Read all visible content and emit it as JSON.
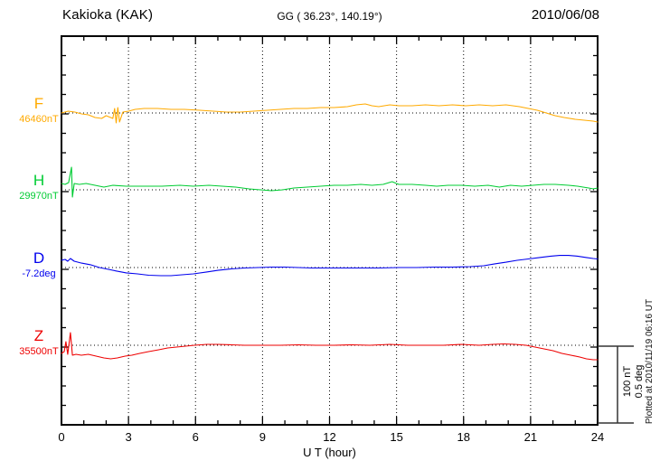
{
  "header": {
    "station": "Kakioka (KAK)",
    "coords": "GG ( 36.23°, 140.19°)",
    "date": "2010/06/08"
  },
  "xaxis": {
    "label": "U T (hour)",
    "ticks": [
      "0",
      "3",
      "6",
      "9",
      "12",
      "15",
      "18",
      "21",
      "24"
    ],
    "min": 0,
    "max": 24
  },
  "scalebar": {
    "line1": "100 nT",
    "line2": "0.5 deg"
  },
  "watermark": "Plotted at 2010/11/19 06:16 UT",
  "chart_data": {
    "type": "line",
    "title": "Kakioka (KAK) magnetogram 2010/06/08",
    "xlabel": "U T (hour)",
    "xlim": [
      0,
      24
    ],
    "x_major_tick_hours": 3,
    "x_minor_tick_hours": 1,
    "grid": "dotted vertical every 3 h, dotted horizontal baseline per channel",
    "legend_position": "left of each trace",
    "scale_bar": {
      "span_nT": 100,
      "span_deg": 0.5
    },
    "series": [
      {
        "name": "F",
        "baseline_label": "46460nT",
        "baseline_value": 46460,
        "unit": "nT",
        "color": "#ffaa00",
        "points": [
          [
            0,
            0
          ],
          [
            0.3,
            2.4
          ],
          [
            0.6,
            1.2
          ],
          [
            0.9,
            -1.2
          ],
          [
            1.2,
            -2.4
          ],
          [
            1.5,
            -5.9
          ],
          [
            1.8,
            -7.1
          ],
          [
            2.0,
            -3.5
          ],
          [
            2.3,
            -7.1
          ],
          [
            2.38,
            5.9
          ],
          [
            2.45,
            -12.9
          ],
          [
            2.52,
            7.1
          ],
          [
            2.6,
            -11.8
          ],
          [
            2.75,
            1.2
          ],
          [
            3.0,
            2.4
          ],
          [
            3.3,
            4.7
          ],
          [
            3.7,
            5.9
          ],
          [
            4.3,
            5.9
          ],
          [
            4.9,
            4.7
          ],
          [
            5.5,
            4.7
          ],
          [
            6.2,
            3.5
          ],
          [
            6.8,
            2.4
          ],
          [
            7.4,
            1.2
          ],
          [
            8.0,
            1.2
          ],
          [
            8.6,
            2.4
          ],
          [
            9.2,
            3.5
          ],
          [
            9.8,
            4.7
          ],
          [
            10.4,
            5.9
          ],
          [
            11.0,
            5.9
          ],
          [
            11.6,
            7.1
          ],
          [
            12.2,
            7.1
          ],
          [
            12.8,
            8.2
          ],
          [
            13.2,
            10.6
          ],
          [
            13.6,
            11.8
          ],
          [
            13.9,
            9.4
          ],
          [
            14.2,
            8.2
          ],
          [
            14.7,
            10.6
          ],
          [
            15.1,
            9.4
          ],
          [
            15.7,
            9.4
          ],
          [
            16.3,
            10.6
          ],
          [
            16.9,
            9.4
          ],
          [
            17.5,
            10.6
          ],
          [
            18.1,
            9.4
          ],
          [
            18.7,
            10.6
          ],
          [
            19.3,
            9.4
          ],
          [
            19.9,
            10.6
          ],
          [
            20.5,
            8.2
          ],
          [
            20.9,
            5.9
          ],
          [
            21.3,
            3.5
          ],
          [
            21.7,
            0
          ],
          [
            22.1,
            -3.5
          ],
          [
            22.5,
            -5.9
          ],
          [
            23.0,
            -8.2
          ],
          [
            23.4,
            -9.4
          ],
          [
            23.8,
            -10.6
          ],
          [
            24,
            -11.8
          ]
        ]
      },
      {
        "name": "H",
        "baseline_label": "29970nT",
        "baseline_value": 29970,
        "unit": "nT",
        "color": "#00cc33",
        "points": [
          [
            0,
            8.2
          ],
          [
            0.16,
            7.1
          ],
          [
            0.32,
            9.4
          ],
          [
            0.45,
            29.4
          ],
          [
            0.49,
            -9.4
          ],
          [
            0.57,
            8.2
          ],
          [
            0.8,
            7.1
          ],
          [
            1.1,
            8.2
          ],
          [
            1.5,
            5.9
          ],
          [
            1.9,
            3.5
          ],
          [
            2.3,
            5.9
          ],
          [
            2.9,
            4.7
          ],
          [
            3.7,
            4.7
          ],
          [
            4.5,
            4.7
          ],
          [
            5.3,
            5.9
          ],
          [
            5.9,
            4.7
          ],
          [
            6.6,
            5.9
          ],
          [
            7.2,
            4.7
          ],
          [
            7.8,
            3.5
          ],
          [
            8.4,
            1.2
          ],
          [
            8.9,
            0
          ],
          [
            9.4,
            -1.2
          ],
          [
            9.9,
            0
          ],
          [
            10.4,
            2.4
          ],
          [
            11.0,
            3.5
          ],
          [
            11.6,
            4.7
          ],
          [
            12.2,
            5.9
          ],
          [
            12.8,
            5.9
          ],
          [
            13.4,
            7.1
          ],
          [
            13.9,
            5.9
          ],
          [
            14.4,
            7.1
          ],
          [
            14.8,
            10.6
          ],
          [
            15.1,
            7.1
          ],
          [
            15.7,
            7.1
          ],
          [
            16.3,
            5.9
          ],
          [
            16.8,
            4.7
          ],
          [
            17.3,
            5.9
          ],
          [
            17.9,
            5.9
          ],
          [
            18.5,
            4.7
          ],
          [
            19.1,
            5.9
          ],
          [
            19.6,
            3.5
          ],
          [
            20.1,
            5.9
          ],
          [
            20.6,
            4.7
          ],
          [
            21.1,
            5.9
          ],
          [
            21.6,
            7.1
          ],
          [
            22.1,
            7.1
          ],
          [
            22.7,
            5.9
          ],
          [
            23.1,
            4.7
          ],
          [
            23.6,
            2.4
          ],
          [
            23.8,
            1.2
          ],
          [
            24,
            2.4
          ]
        ]
      },
      {
        "name": "D",
        "baseline_label": "-7.2deg",
        "baseline_value": -7.2,
        "unit": "deg",
        "color": "#0000ee",
        "points": [
          [
            0,
            0.047
          ],
          [
            0.16,
            0.053
          ],
          [
            0.28,
            0.041
          ],
          [
            0.4,
            0.059
          ],
          [
            0.57,
            0.041
          ],
          [
            0.9,
            0.029
          ],
          [
            1.3,
            0.018
          ],
          [
            1.7,
            0
          ],
          [
            2.1,
            -0.012
          ],
          [
            2.5,
            -0.024
          ],
          [
            2.9,
            -0.035
          ],
          [
            3.4,
            -0.041
          ],
          [
            3.9,
            -0.05
          ],
          [
            4.45,
            -0.053
          ],
          [
            4.9,
            -0.053
          ],
          [
            5.4,
            -0.047
          ],
          [
            5.9,
            -0.041
          ],
          [
            6.5,
            -0.029
          ],
          [
            7.0,
            -0.018
          ],
          [
            7.6,
            -0.009
          ],
          [
            8.2,
            -0.003
          ],
          [
            8.8,
            0
          ],
          [
            9.4,
            0.003
          ],
          [
            10.0,
            0.003
          ],
          [
            10.6,
            0
          ],
          [
            11.2,
            -0.003
          ],
          [
            11.8,
            -0.003
          ],
          [
            12.6,
            -0.003
          ],
          [
            13.4,
            -0.003
          ],
          [
            14.2,
            -0.003
          ],
          [
            15.1,
            0
          ],
          [
            15.9,
            0
          ],
          [
            16.7,
            0.003
          ],
          [
            17.5,
            0.003
          ],
          [
            18.3,
            0.006
          ],
          [
            18.9,
            0.012
          ],
          [
            19.4,
            0.024
          ],
          [
            19.9,
            0.035
          ],
          [
            20.4,
            0.047
          ],
          [
            20.9,
            0.056
          ],
          [
            21.4,
            0.065
          ],
          [
            21.9,
            0.074
          ],
          [
            22.3,
            0.079
          ],
          [
            22.7,
            0.079
          ],
          [
            23.1,
            0.074
          ],
          [
            23.5,
            0.065
          ],
          [
            23.8,
            0.059
          ],
          [
            24,
            0.056
          ]
        ]
      },
      {
        "name": "Z",
        "baseline_label": "35500nT",
        "baseline_value": 35500,
        "unit": "nT",
        "color": "#ee0000",
        "points": [
          [
            0,
            -10.6
          ],
          [
            0.12,
            -8.2
          ],
          [
            0.2,
            4.7
          ],
          [
            0.28,
            -11.8
          ],
          [
            0.4,
            16.5
          ],
          [
            0.49,
            -12.9
          ],
          [
            0.65,
            -11.8
          ],
          [
            0.89,
            -12.9
          ],
          [
            1.2,
            -11.8
          ],
          [
            1.55,
            -14.1
          ],
          [
            1.9,
            -16.5
          ],
          [
            2.2,
            -17.6
          ],
          [
            2.5,
            -16.5
          ],
          [
            2.85,
            -14.1
          ],
          [
            3.15,
            -12.9
          ],
          [
            3.5,
            -10.6
          ],
          [
            3.9,
            -8.2
          ],
          [
            4.35,
            -5.9
          ],
          [
            4.75,
            -3.5
          ],
          [
            5.15,
            -2.4
          ],
          [
            5.55,
            -1.2
          ],
          [
            5.95,
            0
          ],
          [
            6.5,
            1.2
          ],
          [
            7.0,
            1.2
          ],
          [
            7.6,
            0.6
          ],
          [
            8.2,
            0
          ],
          [
            9.0,
            0
          ],
          [
            9.8,
            0
          ],
          [
            10.6,
            0.6
          ],
          [
            11.4,
            0
          ],
          [
            12.2,
            0
          ],
          [
            13.0,
            0.6
          ],
          [
            13.8,
            0
          ],
          [
            14.7,
            1.2
          ],
          [
            15.5,
            0
          ],
          [
            16.3,
            0
          ],
          [
            17.1,
            0
          ],
          [
            17.9,
            1.2
          ],
          [
            18.7,
            0
          ],
          [
            19.3,
            1.2
          ],
          [
            19.8,
            1.8
          ],
          [
            20.3,
            1.2
          ],
          [
            20.8,
            0
          ],
          [
            21.2,
            -2.4
          ],
          [
            21.6,
            -4.7
          ],
          [
            22.0,
            -7.1
          ],
          [
            22.4,
            -10.6
          ],
          [
            22.8,
            -12.9
          ],
          [
            23.2,
            -15.3
          ],
          [
            23.5,
            -17.6
          ],
          [
            23.8,
            -18.8
          ],
          [
            24,
            -18.8
          ]
        ]
      }
    ]
  }
}
